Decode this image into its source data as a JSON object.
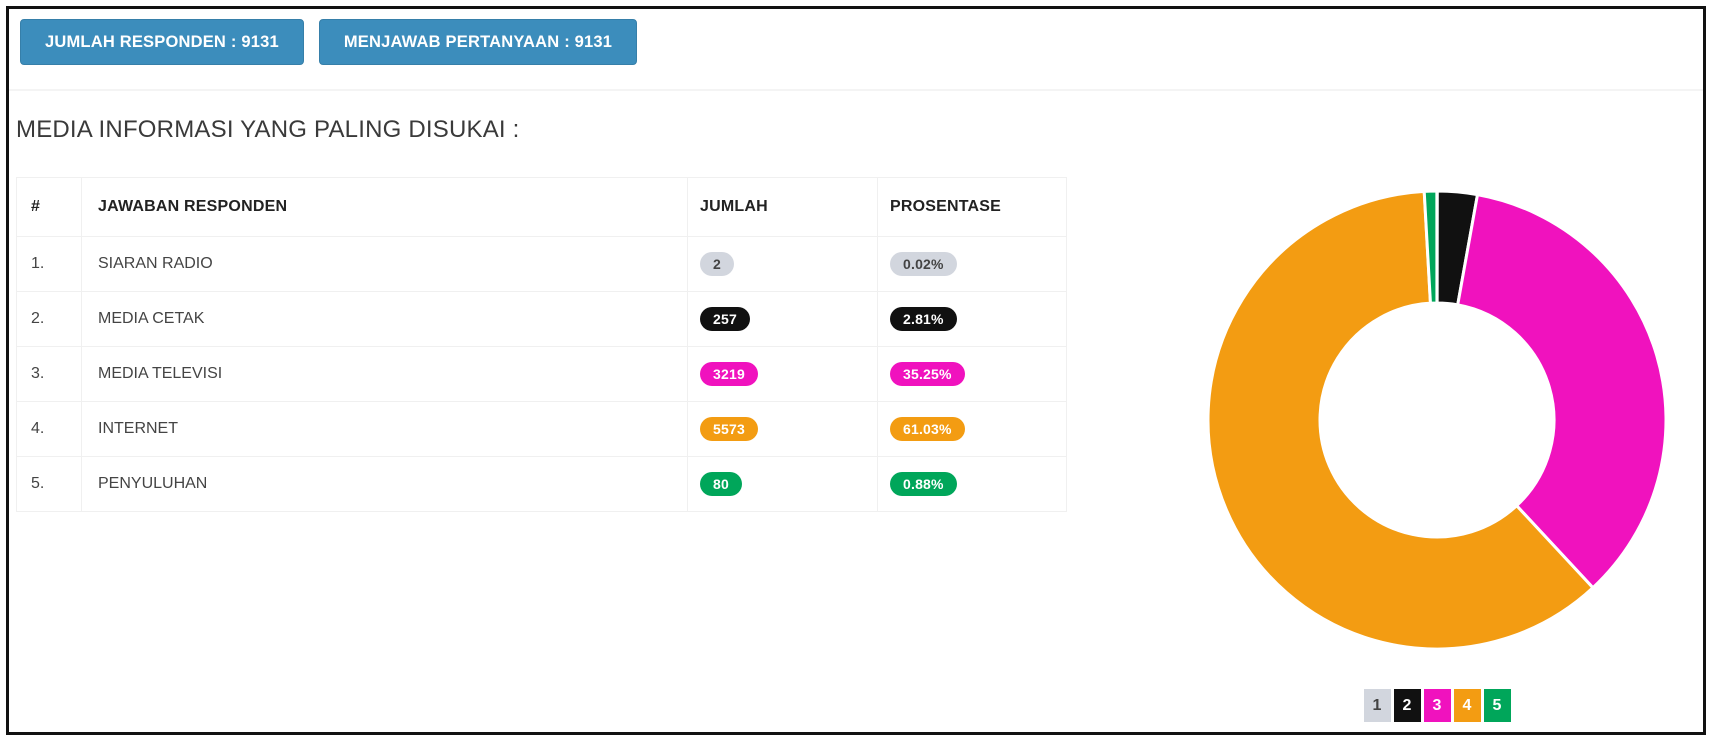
{
  "stats": {
    "respondents_label": "JUMLAH RESPONDEN : 9131",
    "answered_label": "MENJAWAB PERTANYAAN : 9131",
    "respondents_value": 9131,
    "answered_value": 9131
  },
  "section": {
    "title": "MEDIA INFORMASI YANG PALING DISUKAI :"
  },
  "colors": {
    "button_blue": "#3C8DBC",
    "button_border": "#367FA9",
    "gray": "#D2D6DE",
    "black": "#111111",
    "fuchsia": "#F012BE",
    "orange": "#F39C12",
    "green": "#00A65A",
    "dark_text": "#444444",
    "white_text": "#FFFFFF"
  },
  "table": {
    "columns": [
      "#",
      "JAWABAN RESPONDEN",
      "JUMLAH",
      "PROSENTASE"
    ],
    "rows": [
      {
        "no": "1.",
        "answer": "SIARAN RADIO",
        "count": "2",
        "percent": "0.02%",
        "badge_color": "#D2D6DE",
        "badge_text_color": "#444444"
      },
      {
        "no": "2.",
        "answer": "MEDIA CETAK",
        "count": "257",
        "percent": "2.81%",
        "badge_color": "#111111",
        "badge_text_color": "#FFFFFF"
      },
      {
        "no": "3.",
        "answer": "MEDIA TELEVISI",
        "count": "3219",
        "percent": "35.25%",
        "badge_color": "#F012BE",
        "badge_text_color": "#FFFFFF"
      },
      {
        "no": "4.",
        "answer": "INTERNET",
        "count": "5573",
        "percent": "61.03%",
        "badge_color": "#F39C12",
        "badge_text_color": "#FFFFFF"
      },
      {
        "no": "5.",
        "answer": "PENYULUHAN",
        "count": "80",
        "percent": "0.88%",
        "badge_color": "#00A65A",
        "badge_text_color": "#FFFFFF"
      }
    ]
  },
  "chart_data": {
    "type": "pie",
    "subtype": "donut",
    "title": "",
    "categories": [
      "SIARAN RADIO",
      "MEDIA CETAK",
      "MEDIA TELEVISI",
      "INTERNET",
      "PENYULUHAN"
    ],
    "values": [
      2,
      257,
      3219,
      5573,
      80
    ],
    "percentages": [
      0.02,
      2.81,
      35.25,
      61.03,
      0.88
    ],
    "colors": [
      "#D2D6DE",
      "#111111",
      "#F012BE",
      "#F39C12",
      "#00A65A"
    ],
    "start_angle_deg": 0,
    "direction": "clockwise",
    "inner_radius_ratio": 0.51,
    "slice_gap_color": "#FFFFFF",
    "legend_position": "bottom"
  },
  "legend": {
    "items": [
      {
        "label": "1",
        "color": "#D2D6DE",
        "text_color": "#444444"
      },
      {
        "label": "2",
        "color": "#111111",
        "text_color": "#FFFFFF"
      },
      {
        "label": "3",
        "color": "#F012BE",
        "text_color": "#FFFFFF"
      },
      {
        "label": "4",
        "color": "#F39C12",
        "text_color": "#FFFFFF"
      },
      {
        "label": "5",
        "color": "#00A65A",
        "text_color": "#FFFFFF"
      }
    ]
  }
}
